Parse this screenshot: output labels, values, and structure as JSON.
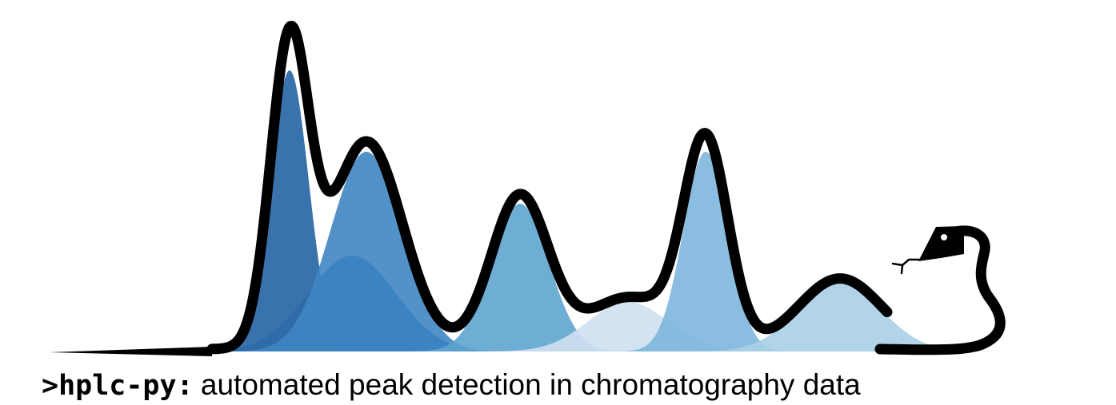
{
  "logo": {
    "name": ">hplc-py:",
    "tagline": "automated peak detection in chromatography data",
    "icon": "python-snake-icon",
    "colors": {
      "outline": "#000000",
      "peaks": [
        "#2f6aa8",
        "#3f86c2",
        "#5ea4cf",
        "#cfe0f0",
        "#7db6dc",
        "#a9cfe6"
      ],
      "underlay": "#2670b5"
    }
  }
}
